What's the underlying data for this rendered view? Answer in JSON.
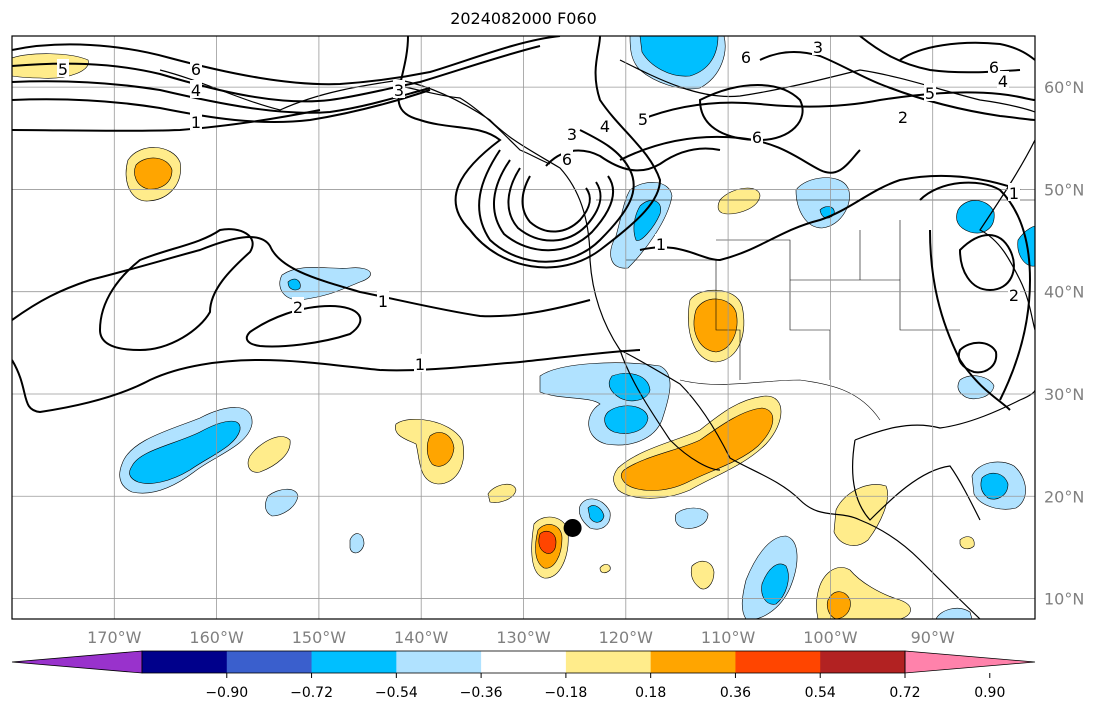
{
  "title": "2024082000 F060",
  "map": {
    "projection": "PlateCarree",
    "lon_range": [
      -180,
      -80
    ],
    "lat_range": [
      8,
      65
    ],
    "lon_ticks": [
      "170°W",
      "160°W",
      "150°W",
      "140°W",
      "130°W",
      "120°W",
      "110°W",
      "100°W",
      "90°W"
    ],
    "lon_tick_values": [
      -170,
      -160,
      -150,
      -140,
      -130,
      -120,
      -110,
      -100,
      -90
    ],
    "lat_ticks": [
      "10°N",
      "20°N",
      "30°N",
      "40°N",
      "50°N",
      "60°N"
    ],
    "lat_tick_values": [
      10,
      20,
      30,
      40,
      50,
      60
    ],
    "gridlines": true,
    "marker": {
      "label": "storm position",
      "lon": -125.2,
      "lat": 16.9
    }
  },
  "contours": {
    "labels": [
      "5",
      "6",
      "4",
      "1",
      "3",
      "3",
      "4",
      "5",
      "6",
      "6",
      "6",
      "5",
      "4",
      "2",
      "1",
      "1",
      "2",
      "1",
      "1",
      "2",
      "6",
      "3"
    ]
  },
  "colorbar": {
    "ticks": [
      "−0.90",
      "−0.72",
      "−0.54",
      "−0.36",
      "−0.18",
      "0.18",
      "0.36",
      "0.54",
      "0.72",
      "0.90"
    ],
    "levels": [
      -0.9,
      -0.72,
      -0.54,
      -0.36,
      -0.18,
      0.18,
      0.36,
      0.54,
      0.72,
      0.9
    ],
    "colors": [
      "#9932cc",
      "#00008b",
      "#3a5fcd",
      "#00bfff",
      "#b0e2ff",
      "#ffffff",
      "#ffec8b",
      "#ffa500",
      "#ff4500",
      "#b22222",
      "#ff82ab"
    ],
    "extend": "both"
  }
}
